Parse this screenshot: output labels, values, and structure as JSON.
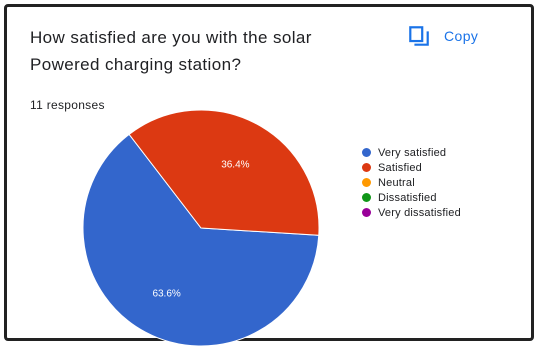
{
  "question": "How satisfied are you with the solar Powered charging station?",
  "responses": "11 responses",
  "copy_label": "Copy",
  "icons": {
    "copy": "copy-icon"
  },
  "chart_data": {
    "type": "pie",
    "labels": [
      "Very satisfied",
      "Satisfied",
      "Neutral",
      "Dissatisfied",
      "Very dissatisfied"
    ],
    "values": [
      63.6,
      36.4,
      0,
      0,
      0
    ],
    "data_labels": [
      "63.6%",
      "36.4%",
      "",
      "",
      ""
    ],
    "colors": [
      "#3366cc",
      "#dc3912",
      "#ff9900",
      "#109618",
      "#990099"
    ],
    "legend": "right"
  }
}
